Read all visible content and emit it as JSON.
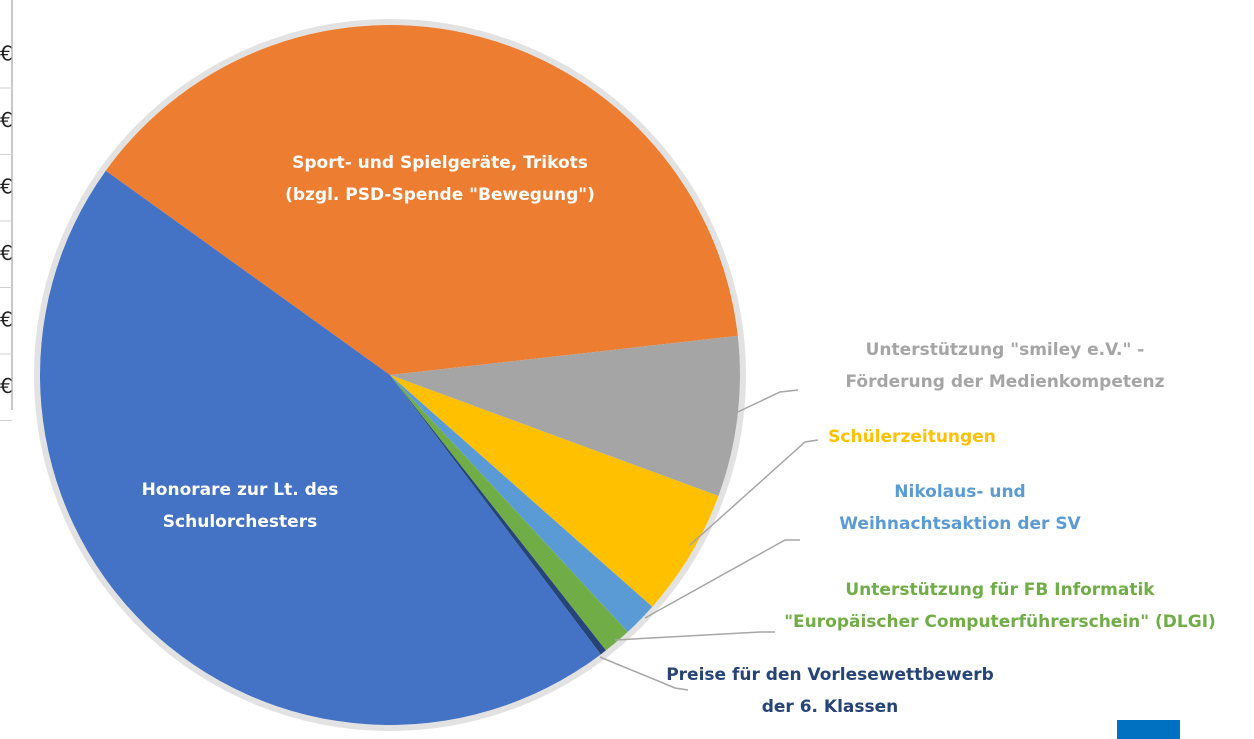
{
  "side_table": {
    "cells": [
      "€",
      "€",
      "€",
      "€",
      "€",
      "€"
    ]
  },
  "chart_data": {
    "type": "pie",
    "categories": [
      [
        "Sport- und Spielgeräte, Trikots",
        "(bzgl. PSD-Spende \"Bewegung\")"
      ],
      [
        "Unterstützung \"smiley e.V.\" -",
        "Förderung der Medienkompetenz"
      ],
      [
        "Schülerzeitungen"
      ],
      [
        "Nikolaus- und",
        "Weihnachtsaktion der SV"
      ],
      [
        "Unterstützung für FB Informatik",
        "\"Europäischer Computerführerschein\" (DLGI)"
      ],
      [
        "Preise für den Vorlesewettbewerb",
        "der 6. Klassen"
      ],
      [
        "Honorare zur Lt. des",
        "Schulorchesters"
      ]
    ],
    "values": [
      38.3,
      7.4,
      5.9,
      1.6,
      1.3,
      0.3,
      45.2
    ],
    "colors": [
      "#ed7d31",
      "#a5a5a5",
      "#ffc000",
      "#5b9bd5",
      "#70ad47",
      "#264478",
      "#4472c4"
    ]
  }
}
